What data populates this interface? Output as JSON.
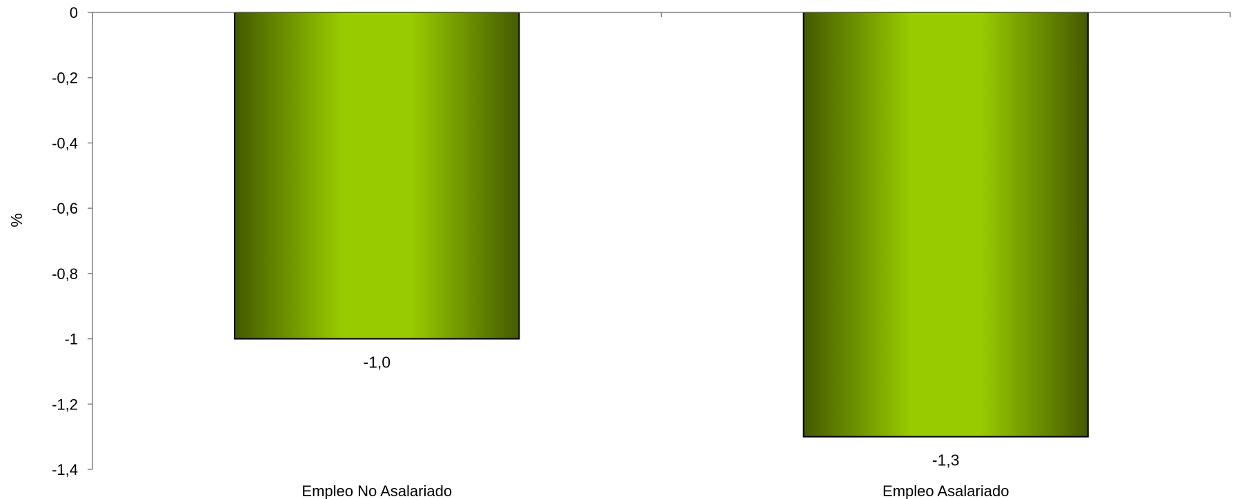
{
  "chart_data": {
    "type": "bar",
    "categories": [
      "Empleo No Asalariado",
      "Empleo Asalariado"
    ],
    "values": [
      -1.0,
      -1.3
    ],
    "data_labels": [
      "-1,0",
      "-1,3"
    ],
    "title": "",
    "xlabel": "",
    "ylabel": "%",
    "ylim": [
      -1.4,
      0
    ],
    "yticks": [
      0,
      -0.2,
      -0.4,
      -0.6,
      -0.8,
      -1,
      -1.2,
      -1.4
    ],
    "ytick_labels": [
      "0",
      "-0,2",
      "-0,4",
      "-0,6",
      "-0,8",
      "-1",
      "-1,2",
      "-1,4"
    ],
    "grid": false,
    "legend": "none",
    "colors": {
      "bar_edge": "#445a00",
      "bar_center": "#99cc00",
      "bar_outline": "#000000",
      "axis": "#808080"
    }
  }
}
